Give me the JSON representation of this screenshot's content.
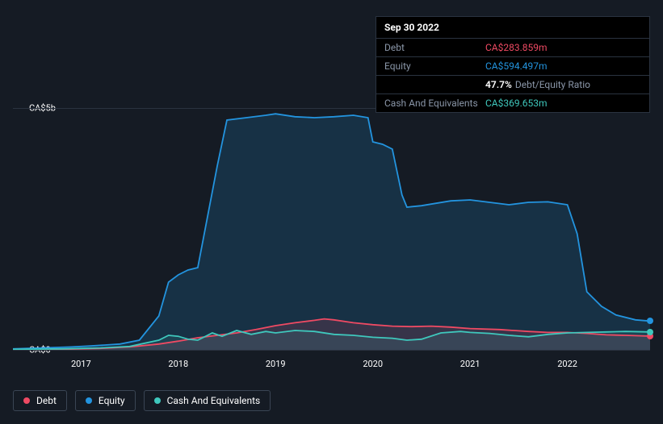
{
  "colors": {
    "background": "#151b24",
    "grid": "#2a3340",
    "text": "#ffffff",
    "muted": "#8a96a8",
    "debt": "#ef4a63",
    "equity": "#2394df",
    "cash": "#3fc8bd",
    "equity_fill": "rgba(35,148,223,0.18)",
    "debt_fill": "rgba(239,74,99,0.15)",
    "cash_fill": "rgba(63,200,189,0.12)"
  },
  "tooltip": {
    "date": "Sep 30 2022",
    "rows": [
      {
        "label": "Debt",
        "value": "CA$283.859m",
        "class": "debt"
      },
      {
        "label": "Equity",
        "value": "CA$594.497m",
        "class": "equity"
      },
      {
        "label": "",
        "pct": "47.7%",
        "ratio_label": "Debt/Equity Ratio"
      },
      {
        "label": "Cash And Equivalents",
        "value": "CA$369.653m",
        "class": "cash"
      }
    ]
  },
  "chart": {
    "type": "area",
    "y_axis": {
      "min": 0,
      "max": 5000,
      "unit": "CA$m",
      "labels": [
        {
          "value": 0,
          "text": "CA$0"
        },
        {
          "value": 5000,
          "text": "CA$5b"
        }
      ]
    },
    "x_axis": {
      "min": 2016.3,
      "max": 2022.85,
      "labels": [
        2017,
        2018,
        2019,
        2020,
        2021,
        2022
      ]
    },
    "series": {
      "equity": {
        "label": "Equity",
        "color": "#2394df",
        "values": [
          [
            2016.3,
            20
          ],
          [
            2016.6,
            40
          ],
          [
            2016.9,
            60
          ],
          [
            2017.1,
            80
          ],
          [
            2017.4,
            120
          ],
          [
            2017.6,
            200
          ],
          [
            2017.8,
            700
          ],
          [
            2017.9,
            1400
          ],
          [
            2018.0,
            1550
          ],
          [
            2018.1,
            1650
          ],
          [
            2018.2,
            1700
          ],
          [
            2018.4,
            3800
          ],
          [
            2018.5,
            4750
          ],
          [
            2018.7,
            4800
          ],
          [
            2018.9,
            4850
          ],
          [
            2019.0,
            4880
          ],
          [
            2019.2,
            4820
          ],
          [
            2019.4,
            4800
          ],
          [
            2019.6,
            4820
          ],
          [
            2019.8,
            4850
          ],
          [
            2019.95,
            4800
          ],
          [
            2020.0,
            4300
          ],
          [
            2020.1,
            4250
          ],
          [
            2020.2,
            4150
          ],
          [
            2020.3,
            3200
          ],
          [
            2020.35,
            2950
          ],
          [
            2020.5,
            2980
          ],
          [
            2020.8,
            3080
          ],
          [
            2021.0,
            3100
          ],
          [
            2021.2,
            3050
          ],
          [
            2021.4,
            3000
          ],
          [
            2021.6,
            3050
          ],
          [
            2021.8,
            3060
          ],
          [
            2022.0,
            3000
          ],
          [
            2022.1,
            2400
          ],
          [
            2022.2,
            1200
          ],
          [
            2022.35,
            900
          ],
          [
            2022.5,
            720
          ],
          [
            2022.7,
            620
          ],
          [
            2022.85,
            595
          ]
        ]
      },
      "debt": {
        "label": "Debt",
        "color": "#ef4a63",
        "values": [
          [
            2016.3,
            5
          ],
          [
            2016.8,
            10
          ],
          [
            2017.2,
            30
          ],
          [
            2017.5,
            60
          ],
          [
            2017.8,
            120
          ],
          [
            2018.0,
            180
          ],
          [
            2018.2,
            250
          ],
          [
            2018.4,
            300
          ],
          [
            2018.6,
            350
          ],
          [
            2018.8,
            420
          ],
          [
            2019.0,
            500
          ],
          [
            2019.2,
            560
          ],
          [
            2019.4,
            610
          ],
          [
            2019.5,
            640
          ],
          [
            2019.6,
            620
          ],
          [
            2019.8,
            560
          ],
          [
            2020.0,
            520
          ],
          [
            2020.2,
            490
          ],
          [
            2020.4,
            480
          ],
          [
            2020.6,
            490
          ],
          [
            2020.8,
            470
          ],
          [
            2021.0,
            440
          ],
          [
            2021.3,
            420
          ],
          [
            2021.6,
            380
          ],
          [
            2021.8,
            360
          ],
          [
            2022.0,
            360
          ],
          [
            2022.2,
            340
          ],
          [
            2022.4,
            310
          ],
          [
            2022.6,
            300
          ],
          [
            2022.85,
            284
          ]
        ]
      },
      "cash": {
        "label": "Cash And Equivalents",
        "color": "#3fc8bd",
        "values": [
          [
            2016.3,
            10
          ],
          [
            2016.8,
            20
          ],
          [
            2017.2,
            40
          ],
          [
            2017.5,
            70
          ],
          [
            2017.8,
            200
          ],
          [
            2017.9,
            300
          ],
          [
            2018.0,
            280
          ],
          [
            2018.1,
            220
          ],
          [
            2018.2,
            200
          ],
          [
            2018.35,
            350
          ],
          [
            2018.45,
            280
          ],
          [
            2018.6,
            400
          ],
          [
            2018.75,
            320
          ],
          [
            2018.9,
            380
          ],
          [
            2019.0,
            350
          ],
          [
            2019.2,
            400
          ],
          [
            2019.4,
            380
          ],
          [
            2019.6,
            320
          ],
          [
            2019.8,
            300
          ],
          [
            2020.0,
            260
          ],
          [
            2020.2,
            240
          ],
          [
            2020.35,
            200
          ],
          [
            2020.5,
            220
          ],
          [
            2020.7,
            350
          ],
          [
            2020.9,
            380
          ],
          [
            2021.0,
            360
          ],
          [
            2021.2,
            340
          ],
          [
            2021.4,
            300
          ],
          [
            2021.6,
            270
          ],
          [
            2021.8,
            320
          ],
          [
            2022.0,
            350
          ],
          [
            2022.2,
            360
          ],
          [
            2022.4,
            370
          ],
          [
            2022.6,
            380
          ],
          [
            2022.85,
            370
          ]
        ]
      }
    }
  },
  "legend": [
    {
      "label": "Debt",
      "color": "#ef4a63"
    },
    {
      "label": "Equity",
      "color": "#2394df"
    },
    {
      "label": "Cash And Equivalents",
      "color": "#3fc8bd"
    }
  ]
}
